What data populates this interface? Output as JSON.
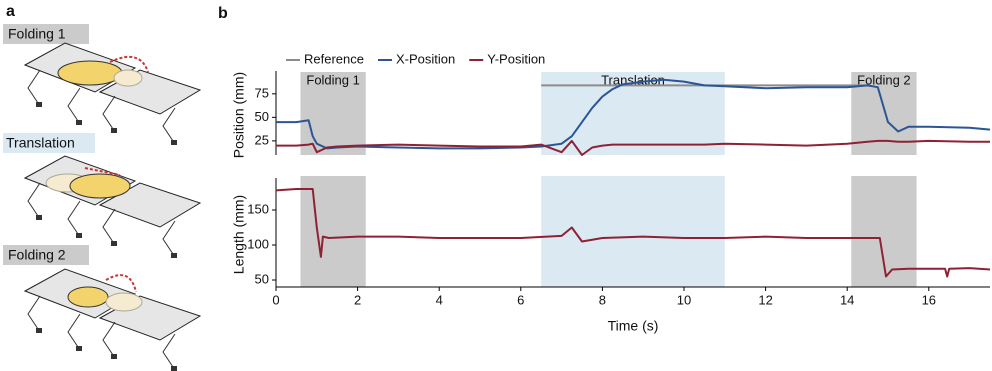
{
  "panel_a": {
    "label": "a",
    "steps": [
      "Folding 1",
      "Translation",
      "Folding 2"
    ]
  },
  "panel_b": {
    "label": "b"
  },
  "chart_data": [
    {
      "type": "line",
      "ylabel": "Position (mm)",
      "x": [
        0,
        0.5,
        0.8,
        0.9,
        1,
        1.25,
        1.5,
        2,
        3,
        4,
        5,
        6,
        6.5,
        7,
        7.25,
        7.5,
        7.75,
        8,
        8.25,
        8.5,
        9,
        9.5,
        10,
        10.5,
        11,
        12,
        13,
        14,
        14.5,
        14.75,
        15,
        15.25,
        15.5,
        16,
        17,
        17.5
      ],
      "series": [
        {
          "name": "Reference",
          "color": "#8c8c8c",
          "values": [
            null,
            null,
            null,
            null,
            null,
            null,
            null,
            null,
            null,
            null,
            null,
            null,
            84,
            84,
            84,
            84,
            84,
            84,
            84,
            84,
            84,
            84,
            84,
            84,
            84,
            84,
            84,
            84,
            84,
            null,
            null,
            null,
            null,
            null,
            null,
            null
          ]
        },
        {
          "name": "X-Position",
          "color": "#2b5594",
          "values": [
            45,
            45,
            47,
            30,
            22,
            17,
            18,
            19,
            18,
            17,
            17,
            18,
            19,
            22,
            30,
            45,
            60,
            72,
            80,
            85,
            88,
            90,
            88,
            84,
            83,
            81,
            82,
            82,
            84,
            82,
            45,
            35,
            40,
            40,
            39,
            37
          ]
        },
        {
          "name": "Y-Position",
          "color": "#8e2234",
          "values": [
            20,
            20,
            21,
            22,
            13,
            18,
            19,
            20,
            21,
            20,
            19,
            19,
            21,
            13,
            25,
            10,
            18,
            20,
            21,
            21,
            21,
            21,
            21,
            21,
            22,
            21,
            20,
            22,
            24,
            25,
            25,
            24,
            24,
            25,
            24,
            24
          ]
        }
      ],
      "regions": [
        {
          "label": "Folding 1",
          "start": 0.6,
          "end": 2.2,
          "color": "#cbcbcb"
        },
        {
          "label": "Translation",
          "start": 6.5,
          "end": 11,
          "color": "#dbe9f3"
        },
        {
          "label": "Folding 2",
          "start": 14.1,
          "end": 15.7,
          "color": "#cbcbcb"
        }
      ],
      "xlim": [
        0,
        17.5
      ],
      "ylim": [
        10,
        95
      ],
      "yticks": [
        25,
        50,
        75
      ],
      "legend": "top-left"
    },
    {
      "type": "line",
      "ylabel": "Length (mm)",
      "xlabel": "Time (s)",
      "x": [
        0,
        0.5,
        0.9,
        1.0,
        1.1,
        1.15,
        1.3,
        2,
        3,
        4,
        5,
        6,
        7,
        7.25,
        7.5,
        8,
        9,
        10,
        11,
        12,
        13,
        14,
        14.5,
        14.8,
        14.95,
        15.1,
        15.5,
        16,
        16.4,
        16.45,
        16.5,
        17,
        17.5
      ],
      "series": [
        {
          "name": "Length",
          "color": "#8e2234",
          "values": [
            178,
            180,
            180,
            125,
            83,
            112,
            110,
            112,
            112,
            110,
            110,
            110,
            113,
            125,
            105,
            110,
            112,
            110,
            110,
            112,
            110,
            110,
            110,
            110,
            55,
            65,
            66,
            66,
            66,
            55,
            66,
            67,
            65
          ]
        }
      ],
      "xlim": [
        0,
        17.5
      ],
      "ylim": [
        40,
        190
      ],
      "xticks": [
        0,
        2,
        4,
        6,
        8,
        10,
        12,
        14,
        16
      ],
      "yticks": [
        50,
        100,
        150
      ]
    }
  ]
}
